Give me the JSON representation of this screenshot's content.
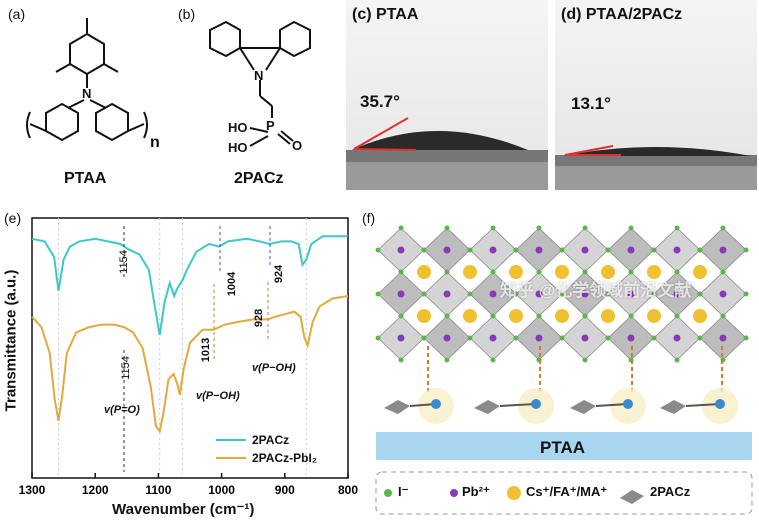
{
  "panels": {
    "a": {
      "label": "(a)",
      "name": "PTAA",
      "subscript": "n",
      "atom_n": "N"
    },
    "b": {
      "label": "(b)",
      "name": "2PACz",
      "atom_n": "N",
      "atom_p": "P",
      "ho1": "HO",
      "ho2": "HO",
      "o": "O"
    },
    "c": {
      "label": "(c) PTAA",
      "angle": "35.7°"
    },
    "d": {
      "label": "(d) PTAA/2PACz",
      "angle": "13.1°"
    },
    "e": {
      "label": "(e)",
      "annotations": {
        "t1154_top": "1154",
        "t1004": "1004",
        "t924": "924",
        "t1154_bot": "1154",
        "t1013": "1013",
        "t928": "928",
        "vpo": "v(P=O)",
        "vpoh1": "v(P−OH)",
        "vpoh2": "v(P−OH)"
      }
    },
    "f": {
      "label": "(f)",
      "substrate": "PTAA",
      "legend": {
        "iodide": "I⁻",
        "lead": "Pb²⁺",
        "cation": "Cs⁺/FA⁺/MA⁺",
        "sam": "2PACz"
      }
    }
  },
  "chart_data": {
    "type": "line",
    "xlabel": "Wavenumber (cm⁻¹)",
    "ylabel": "Transmittance (a.u.)",
    "xlim": [
      1300,
      800
    ],
    "xticks": [
      "1300",
      "1200",
      "1100",
      "1000",
      "900",
      "800"
    ],
    "legend_position": "bottom-right",
    "series": [
      {
        "name": "2PACz",
        "color": "#3cc8c8",
        "x": [
          1300,
          1280,
          1265,
          1258,
          1250,
          1240,
          1225,
          1200,
          1180,
          1160,
          1154,
          1148,
          1130,
          1115,
          1105,
          1098,
          1090,
          1082,
          1075,
          1070,
          1062,
          1055,
          1040,
          1020,
          1004,
          990,
          960,
          940,
          924,
          905,
          890,
          878,
          872,
          866,
          858,
          840,
          820,
          800
        ],
        "y": [
          0.92,
          0.91,
          0.85,
          0.72,
          0.84,
          0.89,
          0.91,
          0.92,
          0.91,
          0.9,
          0.89,
          0.88,
          0.86,
          0.8,
          0.65,
          0.55,
          0.68,
          0.75,
          0.7,
          0.73,
          0.76,
          0.8,
          0.87,
          0.9,
          0.89,
          0.91,
          0.92,
          0.91,
          0.9,
          0.91,
          0.91,
          0.9,
          0.82,
          0.84,
          0.9,
          0.93,
          0.93,
          0.93
        ]
      },
      {
        "name": "2PACz-PbI₂",
        "color": "#e0aa3c",
        "x": [
          1300,
          1285,
          1272,
          1264,
          1258,
          1252,
          1245,
          1230,
          1210,
          1190,
          1170,
          1154,
          1140,
          1125,
          1112,
          1104,
          1098,
          1092,
          1084,
          1076,
          1070,
          1066,
          1060,
          1050,
          1030,
          1013,
          995,
          975,
          950,
          928,
          915,
          900,
          885,
          875,
          869,
          864,
          856,
          845,
          825,
          800
        ],
        "y": [
          0.62,
          0.58,
          0.48,
          0.3,
          0.22,
          0.32,
          0.48,
          0.56,
          0.58,
          0.59,
          0.59,
          0.58,
          0.56,
          0.5,
          0.35,
          0.2,
          0.18,
          0.25,
          0.38,
          0.4,
          0.36,
          0.32,
          0.42,
          0.52,
          0.57,
          0.57,
          0.59,
          0.6,
          0.61,
          0.61,
          0.62,
          0.63,
          0.64,
          0.62,
          0.54,
          0.51,
          0.6,
          0.66,
          0.69,
          0.7
        ]
      }
    ]
  },
  "watermark": "知乎 @化学领域前沿文献"
}
